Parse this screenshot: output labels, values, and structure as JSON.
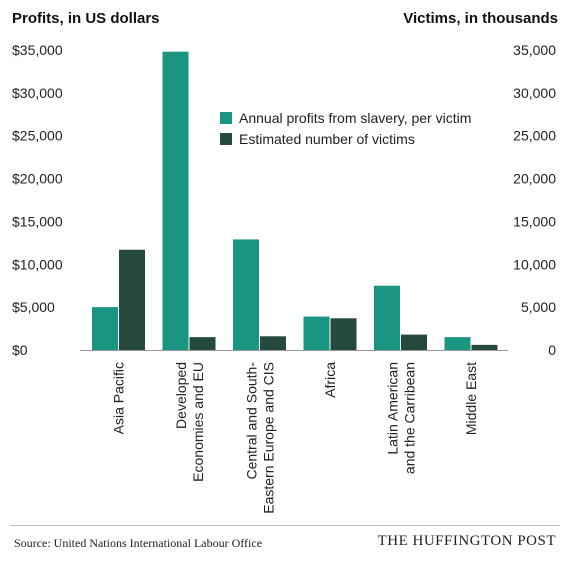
{
  "chart_data": {
    "type": "bar",
    "left_axis_title": "Profits, in US dollars",
    "right_axis_title": "Victims, in thousands",
    "categories": [
      [
        "Asia Pacific"
      ],
      [
        "Developed",
        "Economies and EU"
      ],
      [
        "Central and South-",
        "Eastern Europe and CIS"
      ],
      [
        "Africa"
      ],
      [
        "Latin American",
        "and the Carribean"
      ],
      [
        "Middle East"
      ]
    ],
    "series": [
      {
        "name": "Annual profits from slavery, per victim",
        "axis": "left",
        "color": "#1a9582",
        "values": [
          5000,
          34800,
          12900,
          3900,
          7500,
          1500
        ]
      },
      {
        "name": "Estimated number of victims",
        "axis": "right",
        "color": "#254a3d",
        "values": [
          11700,
          1500,
          1600,
          3700,
          1800,
          600
        ]
      }
    ],
    "left_ylim": [
      0,
      35000
    ],
    "left_ticks": [
      "$0",
      "$5,000",
      "$10,000",
      "$15,000",
      "$20,000",
      "$25,000",
      "$30,000",
      "$35,000"
    ],
    "right_ylim": [
      0,
      35000
    ],
    "right_ticks": [
      "0",
      "5,000",
      "10,000",
      "15,000",
      "20,000",
      "25,000",
      "30,000",
      "35,000"
    ],
    "legend_position": "upper-center",
    "grid": false
  },
  "footer": {
    "source": "Source: United Nations International Labour Office",
    "brand": "THE HUFFINGTON POST"
  }
}
